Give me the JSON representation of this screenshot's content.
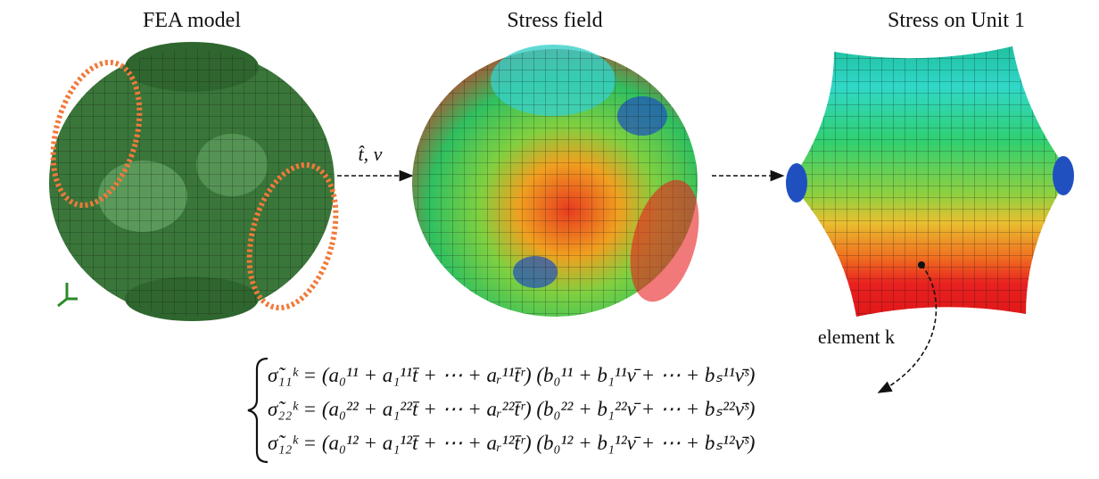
{
  "panels": [
    {
      "title": "FEA model"
    },
    {
      "title": "Stress field"
    },
    {
      "title": "Stress on Unit 1"
    }
  ],
  "arrow_label": "t̂, ν",
  "element_label": "element k",
  "equations": [
    "σ̃₁₁ᵏ = (a₀¹¹ + a₁¹¹t̄ + ⋯ + aᵣ¹¹t̄ʳ) (b₀¹¹ + b₁¹¹ν̄ + ⋯ + bₛ¹¹ν̄ˢ)",
    "σ̃₂₂ᵏ = (a₀²² + a₁²²t̄ + ⋯ + aᵣ²²t̄ʳ) (b₀²² + b₁²²ν̄ + ⋯ + bₛ²²ν̄ˢ)",
    "σ̃₁₂ᵏ = (a₀¹² + a₁¹²t̄ + ⋯ + aᵣ¹²t̄ʳ) (b₀¹² + b₁¹²ν̄ + ⋯ + bₛ¹²ν̄ˢ)"
  ]
}
